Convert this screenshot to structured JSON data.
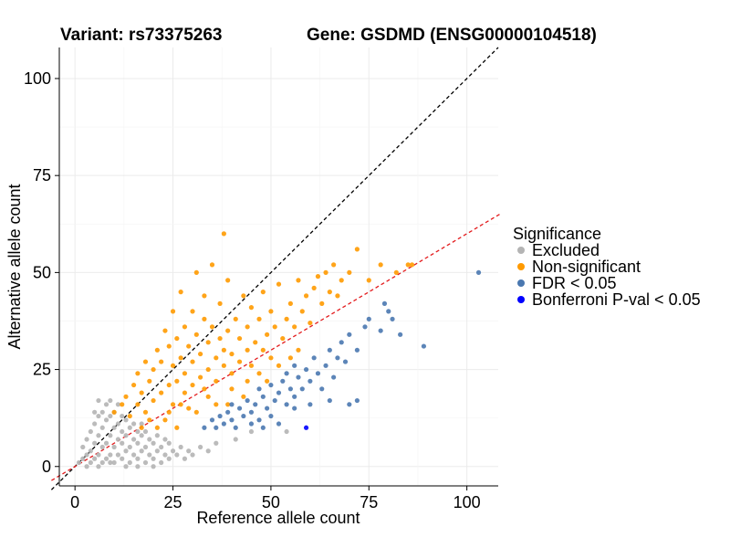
{
  "chart_data": {
    "type": "scatter",
    "title_left": "Variant: rs73375263",
    "title_right": "Gene: GSDMD (ENSG00000104518)",
    "xlabel": "Reference allele count",
    "ylabel": "Alternative allele count",
    "xlim": [
      -4,
      108
    ],
    "ylim": [
      -5,
      108
    ],
    "xticks": [
      0,
      25,
      50,
      75,
      100
    ],
    "yticks": [
      0,
      25,
      50,
      75,
      100
    ],
    "grid": true,
    "reference_lines": [
      {
        "name": "identity",
        "slope": 1.0,
        "intercept": 0,
        "color": "#000000",
        "style": "dashed"
      },
      {
        "name": "fit",
        "slope": 0.6,
        "intercept": 0,
        "color": "#e31a1c",
        "style": "dashed"
      }
    ],
    "legend": {
      "title": "Significance",
      "position": "right",
      "entries": [
        {
          "label": "Excluded",
          "color": "#b4b4b4"
        },
        {
          "label": "Non-significant",
          "color": "#ff9a00"
        },
        {
          "label": "FDR < 0.05",
          "color": "#4a78b0"
        },
        {
          "label": "Bonferroni P-val < 0.05",
          "color": "#0000ff"
        }
      ]
    },
    "series": [
      {
        "name": "Excluded",
        "color": "#b4b4b4",
        "points": [
          [
            1,
            1
          ],
          [
            2,
            2
          ],
          [
            2,
            5
          ],
          [
            3,
            3
          ],
          [
            3,
            7
          ],
          [
            4,
            1
          ],
          [
            4,
            4
          ],
          [
            4,
            9
          ],
          [
            5,
            2
          ],
          [
            5,
            6
          ],
          [
            5,
            11
          ],
          [
            6,
            3
          ],
          [
            6,
            8
          ],
          [
            6,
            13
          ],
          [
            7,
            1
          ],
          [
            7,
            5
          ],
          [
            7,
            10
          ],
          [
            7,
            14
          ],
          [
            8,
            2
          ],
          [
            8,
            6
          ],
          [
            8,
            12
          ],
          [
            8,
            16
          ],
          [
            9,
            3
          ],
          [
            9,
            8
          ],
          [
            9,
            13
          ],
          [
            10,
            1
          ],
          [
            10,
            5
          ],
          [
            10,
            10
          ],
          [
            10,
            14
          ],
          [
            11,
            3
          ],
          [
            11,
            7
          ],
          [
            11,
            11
          ],
          [
            12,
            2
          ],
          [
            12,
            6
          ],
          [
            12,
            9
          ],
          [
            12,
            13
          ],
          [
            13,
            4
          ],
          [
            13,
            8
          ],
          [
            13,
            12
          ],
          [
            14,
            1
          ],
          [
            14,
            5
          ],
          [
            14,
            10
          ],
          [
            15,
            3
          ],
          [
            15,
            7
          ],
          [
            15,
            11
          ],
          [
            16,
            2
          ],
          [
            16,
            6
          ],
          [
            16,
            9
          ],
          [
            17,
            4
          ],
          [
            17,
            8
          ],
          [
            17,
            11
          ],
          [
            18,
            1
          ],
          [
            18,
            5
          ],
          [
            18,
            9
          ],
          [
            19,
            3
          ],
          [
            19,
            7
          ],
          [
            20,
            2
          ],
          [
            20,
            6
          ],
          [
            21,
            4
          ],
          [
            21,
            8
          ],
          [
            22,
            1
          ],
          [
            22,
            5
          ],
          [
            23,
            3
          ],
          [
            23,
            7
          ],
          [
            24,
            2
          ],
          [
            24,
            6
          ],
          [
            25,
            4
          ],
          [
            26,
            3
          ],
          [
            27,
            5
          ],
          [
            28,
            2
          ],
          [
            29,
            4
          ],
          [
            30,
            3
          ],
          [
            32,
            5
          ],
          [
            34,
            4
          ],
          [
            36,
            6
          ],
          [
            5,
            14
          ],
          [
            6,
            17
          ],
          [
            9,
            17
          ],
          [
            11,
            16
          ],
          [
            3,
            0
          ],
          [
            6,
            0
          ],
          [
            9,
            1
          ],
          [
            13,
            0
          ],
          [
            16,
            0
          ],
          [
            20,
            0
          ],
          [
            41,
            7
          ],
          [
            45,
            9
          ],
          [
            54,
            9
          ]
        ]
      },
      {
        "name": "Non-significant",
        "color": "#ff9a00",
        "points": [
          [
            10,
            14
          ],
          [
            12,
            16
          ],
          [
            13,
            18
          ],
          [
            14,
            13
          ],
          [
            15,
            21
          ],
          [
            16,
            16
          ],
          [
            16,
            24
          ],
          [
            17,
            19
          ],
          [
            18,
            14
          ],
          [
            18,
            27
          ],
          [
            19,
            22
          ],
          [
            20,
            17
          ],
          [
            20,
            25
          ],
          [
            21,
            30
          ],
          [
            22,
            19
          ],
          [
            22,
            27
          ],
          [
            23,
            35
          ],
          [
            24,
            21
          ],
          [
            24,
            31
          ],
          [
            25,
            16
          ],
          [
            25,
            26
          ],
          [
            25,
            40
          ],
          [
            26,
            22
          ],
          [
            26,
            33
          ],
          [
            27,
            28
          ],
          [
            27,
            45
          ],
          [
            28,
            19
          ],
          [
            28,
            24
          ],
          [
            28,
            36
          ],
          [
            29,
            31
          ],
          [
            30,
            21
          ],
          [
            30,
            27
          ],
          [
            30,
            40
          ],
          [
            31,
            34
          ],
          [
            31,
            50
          ],
          [
            32,
            23
          ],
          [
            32,
            29
          ],
          [
            33,
            38
          ],
          [
            33,
            44
          ],
          [
            34,
            25
          ],
          [
            34,
            32
          ],
          [
            35,
            36
          ],
          [
            35,
            52
          ],
          [
            36,
            22
          ],
          [
            36,
            28
          ],
          [
            37,
            33
          ],
          [
            37,
            42
          ],
          [
            38,
            26
          ],
          [
            38,
            30
          ],
          [
            38,
            60
          ],
          [
            39,
            35
          ],
          [
            39,
            48
          ],
          [
            40,
            24
          ],
          [
            40,
            29
          ],
          [
            41,
            38
          ],
          [
            42,
            27
          ],
          [
            42,
            33
          ],
          [
            43,
            44
          ],
          [
            44,
            30
          ],
          [
            44,
            36
          ],
          [
            45,
            26
          ],
          [
            45,
            41
          ],
          [
            46,
            32
          ],
          [
            47,
            38
          ],
          [
            48,
            30
          ],
          [
            48,
            45
          ],
          [
            49,
            34
          ],
          [
            50,
            28
          ],
          [
            50,
            40
          ],
          [
            51,
            36
          ],
          [
            52,
            47
          ],
          [
            53,
            33
          ],
          [
            54,
            38
          ],
          [
            55,
            42
          ],
          [
            56,
            36
          ],
          [
            57,
            48
          ],
          [
            58,
            40
          ],
          [
            59,
            44
          ],
          [
            60,
            37
          ],
          [
            61,
            46
          ],
          [
            62,
            49
          ],
          [
            63,
            42
          ],
          [
            64,
            50
          ],
          [
            65,
            45
          ],
          [
            66,
            52
          ],
          [
            67,
            44
          ],
          [
            68,
            48
          ],
          [
            70,
            50
          ],
          [
            72,
            56
          ],
          [
            75,
            48
          ],
          [
            78,
            52
          ],
          [
            82,
            50
          ],
          [
            85,
            52
          ],
          [
            86,
            52
          ],
          [
            34,
            18
          ],
          [
            40,
            20
          ],
          [
            44,
            22
          ],
          [
            47,
            24
          ],
          [
            29,
            15
          ],
          [
            23,
            12
          ],
          [
            21,
            10
          ],
          [
            26,
            10
          ],
          [
            31,
            14
          ],
          [
            36,
            16
          ],
          [
            39,
            16
          ],
          [
            43,
            18
          ],
          [
            49,
            22
          ],
          [
            52,
            26
          ],
          [
            55,
            28
          ],
          [
            57,
            30
          ],
          [
            24,
            14
          ],
          [
            27,
            16
          ],
          [
            33,
            20
          ],
          [
            19,
            12
          ],
          [
            17,
            10
          ]
        ]
      },
      {
        "name": "FDR < 0.05",
        "color": "#4a78b0",
        "points": [
          [
            33,
            10
          ],
          [
            35,
            12
          ],
          [
            36,
            10
          ],
          [
            37,
            13
          ],
          [
            38,
            11
          ],
          [
            39,
            14
          ],
          [
            40,
            12
          ],
          [
            40,
            16
          ],
          [
            41,
            10
          ],
          [
            42,
            15
          ],
          [
            43,
            13
          ],
          [
            44,
            17
          ],
          [
            45,
            11
          ],
          [
            45,
            14
          ],
          [
            46,
            16
          ],
          [
            47,
            12
          ],
          [
            47,
            20
          ],
          [
            48,
            18
          ],
          [
            49,
            15
          ],
          [
            50,
            13
          ],
          [
            50,
            21
          ],
          [
            51,
            17
          ],
          [
            52,
            19
          ],
          [
            53,
            22
          ],
          [
            54,
            16
          ],
          [
            54,
            24
          ],
          [
            55,
            20
          ],
          [
            56,
            18
          ],
          [
            56,
            26
          ],
          [
            57,
            23
          ],
          [
            58,
            20
          ],
          [
            59,
            25
          ],
          [
            60,
            22
          ],
          [
            61,
            28
          ],
          [
            62,
            24
          ],
          [
            63,
            20
          ],
          [
            64,
            26
          ],
          [
            65,
            30
          ],
          [
            66,
            23
          ],
          [
            67,
            28
          ],
          [
            68,
            32
          ],
          [
            69,
            27
          ],
          [
            70,
            34
          ],
          [
            72,
            30
          ],
          [
            74,
            36
          ],
          [
            75,
            38
          ],
          [
            78,
            35
          ],
          [
            79,
            42
          ],
          [
            80,
            40
          ],
          [
            81,
            38
          ],
          [
            83,
            34
          ],
          [
            89,
            31
          ],
          [
            103,
            50
          ],
          [
            48,
            10
          ],
          [
            52,
            11
          ],
          [
            56,
            15
          ],
          [
            60,
            16
          ],
          [
            65,
            17
          ],
          [
            70,
            16
          ],
          [
            72,
            17
          ]
        ]
      },
      {
        "name": "Bonferroni P-val < 0.05",
        "color": "#0000ff",
        "points": [
          [
            59,
            10
          ]
        ]
      }
    ]
  }
}
